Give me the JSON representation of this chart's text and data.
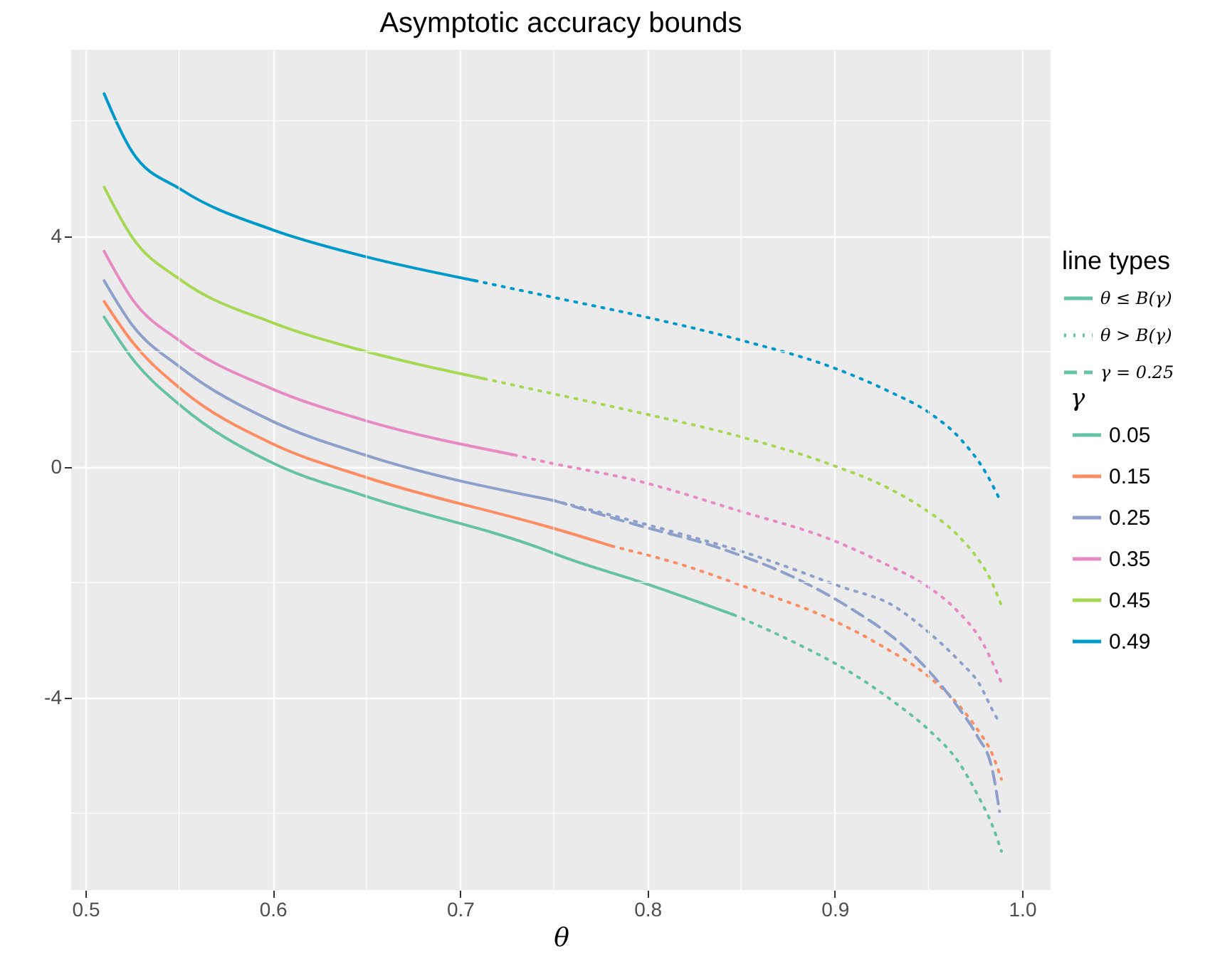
{
  "chart_data": {
    "type": "line",
    "title": "Asymptotic accuracy bounds",
    "xlabel": "θ",
    "legend_title": "γ",
    "legend": "right",
    "grid": true,
    "xlim": [
      0.4924,
      1.0152
    ],
    "ylim": [
      -7.33,
      7.23
    ],
    "xticks": [
      0.5,
      {
        "value": 0.55,
        "label": null
      },
      0.6,
      {
        "value": 0.65,
        "label": null
      },
      0.7,
      {
        "value": 0.75,
        "label": null
      },
      0.8,
      {
        "value": 0.85,
        "label": null
      },
      0.9,
      {
        "value": 0.95,
        "label": null
      },
      {
        "value": 1,
        "label": "1.0"
      }
    ],
    "yticks": [
      {
        "value": -6,
        "label": null
      },
      -4,
      {
        "value": -2,
        "label": null
      },
      0,
      {
        "value": 2,
        "label": null
      },
      4,
      {
        "value": 6,
        "label": null
      }
    ],
    "annotations": [
      "line types",
      "θ ≤ B(γ)",
      "θ > B(γ)",
      "γ = 0.25"
    ],
    "series": [
      {
        "name": "0.05",
        "color": "#66c2a5",
        "line_style": "solid",
        "x": [
          0.51,
          0.525,
          0.551,
          0.6,
          0.649,
          0.743,
          0.756,
          0.799,
          0.846
        ],
        "values": [
          2.6,
          1.88,
          1.06,
          0.07,
          -0.5,
          -1.41,
          -1.57,
          -2.02,
          -2.56
        ]
      },
      {
        "name": "0.15",
        "color": "#fc8d62",
        "line_style": "solid",
        "x": [
          0.51,
          0.525,
          0.551,
          0.6,
          0.649,
          0.743,
          0.756,
          0.781
        ],
        "values": [
          2.87,
          2.17,
          1.35,
          0.4,
          -0.17,
          -1.0,
          -1.12,
          -1.37
        ]
      },
      {
        "name": "0.25",
        "color": "#8da0cb",
        "line_style": "solid",
        "x": [
          0.51,
          0.525,
          0.551,
          0.6,
          0.649,
          0.75
        ],
        "values": [
          3.23,
          2.46,
          1.72,
          0.79,
          0.21,
          -0.58
        ]
      },
      {
        "name": "0.35",
        "color": "#e78ac3",
        "line_style": "solid",
        "x": [
          0.51,
          0.525,
          0.551,
          0.6,
          0.649,
          0.729
        ],
        "values": [
          3.74,
          2.91,
          2.17,
          1.35,
          0.81,
          0.21
        ]
      },
      {
        "name": "0.45",
        "color": "#a6d854",
        "line_style": "solid",
        "x": [
          0.51,
          0.525,
          0.551,
          0.6,
          0.649,
          0.713
        ],
        "values": [
          4.85,
          3.98,
          3.24,
          2.5,
          2.01,
          1.53
        ]
      },
      {
        "name": "0.49",
        "color": "#0099cc",
        "line_style": "solid",
        "x": [
          0.51,
          0.525,
          0.551,
          0.6,
          0.649,
          0.708
        ],
        "values": [
          6.47,
          5.46,
          4.81,
          4.11,
          3.65,
          3.23
        ]
      },
      {
        "color": "#66c2a5",
        "line_style": "dotted",
        "x": [
          0.846,
          0.881,
          0.908,
          0.932,
          0.951,
          0.966,
          0.977,
          0.984,
          0.989
        ],
        "values": [
          -2.56,
          -3.08,
          -3.55,
          -4.08,
          -4.58,
          -5.11,
          -5.73,
          -6.2,
          -6.66
        ]
      },
      {
        "color": "#fc8d62",
        "line_style": "dotted",
        "x": [
          0.781,
          0.819,
          0.855,
          0.898,
          0.924,
          0.95,
          0.966,
          0.976,
          0.984,
          0.989
        ],
        "values": [
          -1.37,
          -1.7,
          -2.11,
          -2.64,
          -3.08,
          -3.63,
          -4.12,
          -4.54,
          -4.97,
          -5.41
        ]
      },
      {
        "color": "#8da0cb",
        "line_style": "dotted",
        "x": [
          0.75,
          0.809,
          0.853,
          0.903,
          0.931,
          0.951,
          0.967,
          0.977,
          0.984,
          0.988
        ],
        "values": [
          -0.58,
          -1.08,
          -1.49,
          -2.07,
          -2.4,
          -2.89,
          -3.38,
          -3.75,
          -4.2,
          -4.44
        ]
      },
      {
        "color": "#e78ac3",
        "line_style": "dotted",
        "x": [
          0.729,
          0.744,
          0.796,
          0.848,
          0.899,
          0.927,
          0.947,
          0.965,
          0.979,
          0.989
        ],
        "values": [
          0.21,
          0.1,
          -0.25,
          -0.75,
          -1.27,
          -1.68,
          -2.02,
          -2.48,
          -3.05,
          -3.74
        ]
      },
      {
        "color": "#a6d854",
        "line_style": "dotted",
        "x": [
          0.713,
          0.744,
          0.796,
          0.848,
          0.899,
          0.927,
          0.947,
          0.965,
          0.975,
          0.983,
          0.989
        ],
        "values": [
          1.53,
          1.31,
          0.94,
          0.54,
          0.03,
          -0.34,
          -0.71,
          -1.16,
          -1.53,
          -1.94,
          -2.4
        ]
      },
      {
        "color": "#0099cc",
        "line_style": "dotted",
        "x": [
          0.708,
          0.747,
          0.799,
          0.851,
          0.901,
          0.929,
          0.95,
          0.967,
          0.981,
          0.988
        ],
        "values": [
          3.23,
          2.96,
          2.6,
          2.19,
          1.7,
          1.31,
          0.95,
          0.49,
          -0.12,
          -0.56
        ]
      },
      {
        "color": "#8da0cb",
        "line_style": "dashed",
        "x": [
          0.75,
          0.794,
          0.839,
          0.88,
          0.908,
          0.938,
          0.956,
          0.966,
          0.976,
          0.984,
          0.988
        ],
        "values": [
          -0.58,
          -1.0,
          -1.41,
          -1.94,
          -2.44,
          -3.14,
          -3.75,
          -4.17,
          -4.66,
          -5.23,
          -5.98
        ]
      }
    ]
  }
}
